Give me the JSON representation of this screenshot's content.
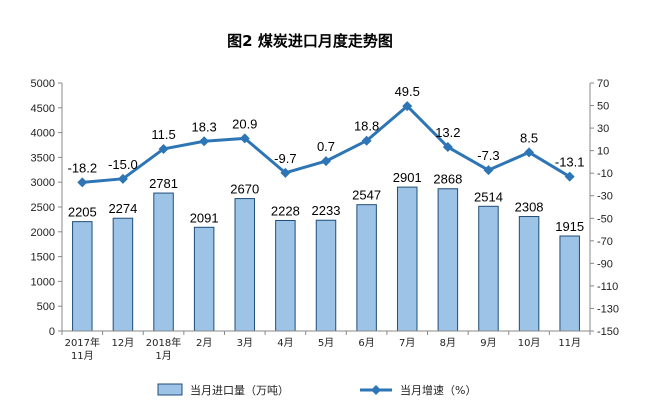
{
  "chart_data": {
    "type": "bar",
    "title": "图2  煤炭进口月度走势图",
    "categories": [
      [
        "2017年",
        "11月"
      ],
      [
        "12月"
      ],
      [
        "2018年",
        "1月"
      ],
      [
        "2月"
      ],
      [
        "3月"
      ],
      [
        "4月"
      ],
      [
        "5月"
      ],
      [
        "6月"
      ],
      [
        "7月"
      ],
      [
        "8月"
      ],
      [
        "9月"
      ],
      [
        "10月"
      ],
      [
        "11月"
      ]
    ],
    "series": [
      {
        "name": "当月进口量（万吨）",
        "type": "bar",
        "axis": "left",
        "color": "#9dc3e6",
        "values": [
          2205,
          2274,
          2781,
          2091,
          2670,
          2228,
          2233,
          2547,
          2901,
          2868,
          2514,
          2308,
          1915
        ]
      },
      {
        "name": "当月增速（%）",
        "type": "line",
        "axis": "right",
        "color": "#2e75b6",
        "values": [
          -18.2,
          -15.0,
          11.5,
          18.3,
          20.9,
          -9.7,
          0.7,
          18.8,
          49.5,
          13.2,
          -7.3,
          8.5,
          -13.1
        ]
      }
    ],
    "left_axis": {
      "min": 0,
      "max": 5000,
      "step": 500,
      "ticks": [
        "0",
        "500",
        "1000",
        "1500",
        "2000",
        "2500",
        "3000",
        "3500",
        "4000",
        "4500",
        "5000"
      ]
    },
    "right_axis": {
      "min": -150,
      "max": 70,
      "step": 20,
      "ticks": [
        "-150",
        "-130",
        "-110",
        "-90",
        "-70",
        "-50",
        "-30",
        "-10",
        "10",
        "30",
        "50",
        "70"
      ]
    },
    "bar_labels": [
      "2205",
      "2274",
      "2781",
      "2091",
      "2670",
      "2228",
      "2233",
      "2547",
      "2901",
      "2868",
      "2514",
      "2308",
      "1915"
    ],
    "line_labels": [
      "-18.2",
      "-15.0",
      "11.5",
      "18.3",
      "20.9",
      "-9.7",
      "0.7",
      "18.8",
      "49.5",
      "13.2",
      "-7.3",
      "8.5",
      "-13.1"
    ],
    "grid": false,
    "legend_position": "bottom"
  }
}
